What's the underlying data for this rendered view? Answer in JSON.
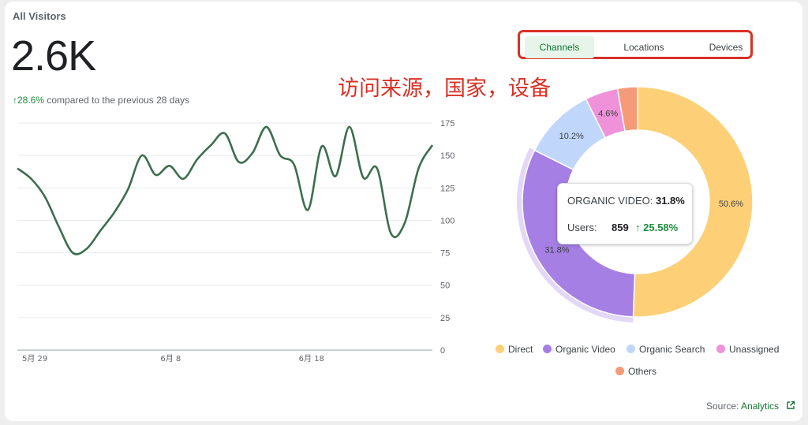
{
  "header": {
    "title": "All Visitors",
    "total": "2.6K",
    "change": "28.6%",
    "change_suffix": "compared to the previous 28 days",
    "arrow": "↑"
  },
  "annotation": "访问来源，国家，设备",
  "tabs": [
    "Channels",
    "Locations",
    "Devices"
  ],
  "active_tab": 0,
  "colors": {
    "line": "#3d6e4e",
    "grid": "#e8eaed",
    "accent": "#1e8e3e",
    "highlight_border": "#d93025"
  },
  "tooltip": {
    "label": "ORGANIC VIDEO:",
    "pct": "31.8%",
    "users_label": "Users:",
    "users_value": "859",
    "arrow": "↑",
    "change": "25.58%"
  },
  "source": {
    "label": "Source:",
    "link": "Analytics",
    "icon": "external-link-icon"
  },
  "chart_data": [
    {
      "type": "line",
      "title": "",
      "xlabel": "",
      "ylabel": "",
      "x_ticks": [
        "5月 29",
        "6月 8",
        "6月 18"
      ],
      "y_ticks": [
        0,
        25,
        50,
        75,
        100,
        125,
        150,
        175
      ],
      "ylim": [
        0,
        175
      ],
      "grid": true,
      "series": [
        {
          "values": [
            140,
            132,
            118,
            95,
            75,
            78,
            92,
            106,
            124,
            150,
            135,
            142,
            132,
            147,
            158,
            167,
            145,
            152,
            172,
            150,
            143,
            108,
            157,
            134,
            172,
            133,
            140,
            90,
            98,
            140,
            158
          ]
        }
      ]
    },
    {
      "type": "pie",
      "donut": true,
      "legend_position": "bottom",
      "labels": [
        "Direct",
        "Organic Video",
        "Organic Search",
        "Unassigned",
        "Others"
      ],
      "values": [
        50.6,
        31.8,
        10.2,
        4.6,
        2.8
      ],
      "data_labels": [
        "50.6%",
        "31.8%",
        "10.2%",
        "4.6%",
        ""
      ],
      "colors": [
        "#fdd078",
        "#a57fe3",
        "#c0d6fb",
        "#ef92da",
        "#f69b78"
      ],
      "highlighted": "Organic Video"
    }
  ]
}
